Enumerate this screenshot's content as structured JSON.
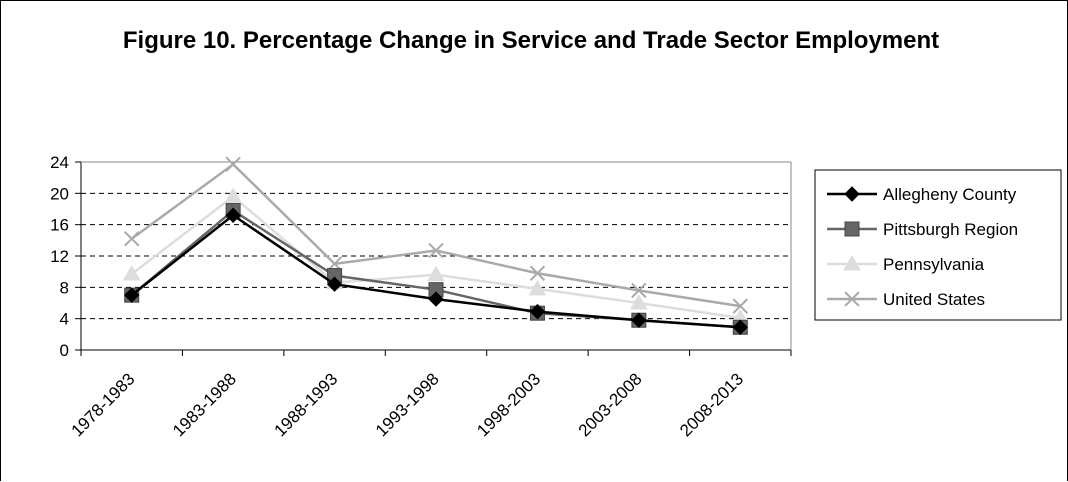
{
  "chart_data": {
    "type": "line",
    "title": "Figure 10. Percentage Change in Service and Trade Sector Employment",
    "categories": [
      "1978-1983",
      "1983-1988",
      "1988-1993",
      "1993-1998",
      "1998-2003",
      "2003-2008",
      "2008-2013"
    ],
    "ylim": [
      0,
      24
    ],
    "yticks": [
      "0",
      "4",
      "8",
      "12",
      "16",
      "20",
      "24"
    ],
    "grid": "horizontal dashed",
    "legend_position": "right",
    "series": [
      {
        "name": "Allegheny County",
        "values": [
          7.0,
          17.2,
          8.4,
          6.5,
          4.9,
          3.8,
          2.9
        ],
        "color": "#000000",
        "marker": "diamond"
      },
      {
        "name": "Pittsburgh Region",
        "values": [
          7.0,
          17.8,
          9.5,
          7.7,
          4.7,
          3.8,
          2.9
        ],
        "color": "#666666",
        "marker": "square"
      },
      {
        "name": "Pennsylvania",
        "values": [
          9.7,
          19.6,
          8.6,
          9.6,
          7.8,
          6.0,
          4.1
        ],
        "color": "#dddddd",
        "marker": "triangle"
      },
      {
        "name": "United States",
        "values": [
          14.2,
          23.7,
          11.0,
          12.7,
          9.8,
          7.6,
          5.6
        ],
        "color": "#aaaaaa",
        "marker": "x"
      }
    ]
  }
}
